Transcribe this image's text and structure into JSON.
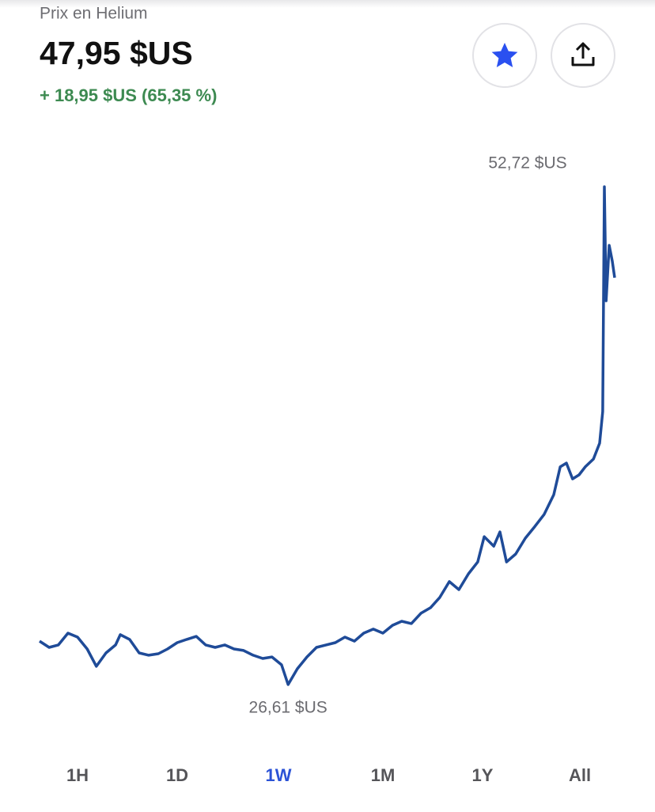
{
  "header": {
    "title": "Prix en Helium",
    "price": "47,95 $US",
    "change": "+ 18,95 $US (65,35 %)",
    "change_color": "#3d8a51"
  },
  "chart_data": {
    "type": "line",
    "x": [
      0,
      2.8,
      5.5,
      8.3,
      11.1,
      13.9,
      16.6,
      19.4,
      22.2,
      23.6,
      26.3,
      29.1,
      31.9,
      34.7,
      37.4,
      40.2,
      43.0,
      45.8,
      48.5,
      51.3,
      54.1,
      56.8,
      59.6,
      62.4,
      65.2,
      67.9,
      70.7,
      72.6,
      75.3,
      78.1,
      80.9,
      83.7,
      86.4,
      89.2,
      92.0,
      94.7,
      97.5,
      100.3,
      103.1,
      105.8,
      108.6,
      111.4,
      114.2,
      116.9,
      119.7,
      122.5,
      125.3,
      128.0,
      129.9,
      132.7,
      134.5,
      136.4,
      139.1,
      141.9,
      144.7,
      147.4,
      150.2,
      152.1,
      153.9,
      155.7,
      157.6,
      159.4,
      161.8,
      163.6,
      164.5,
      165.0,
      165.5,
      166.4,
      167.3,
      168
    ],
    "series": [
      {
        "color": "#1f4b98",
        "values": [
          28.89,
          28.56,
          28.69,
          29.31,
          29.1,
          28.48,
          27.57,
          28.27,
          28.69,
          29.23,
          28.98,
          28.27,
          28.15,
          28.23,
          28.48,
          28.81,
          28.98,
          29.14,
          28.69,
          28.56,
          28.69,
          28.48,
          28.4,
          28.15,
          27.98,
          28.06,
          27.65,
          26.61,
          27.44,
          28.06,
          28.56,
          28.69,
          28.81,
          29.1,
          28.89,
          29.31,
          29.52,
          29.31,
          29.72,
          29.93,
          29.81,
          30.35,
          30.64,
          31.18,
          32.01,
          31.59,
          32.42,
          33.04,
          34.37,
          33.87,
          34.62,
          33.04,
          33.46,
          34.29,
          34.91,
          35.54,
          36.57,
          38.03,
          38.23,
          37.4,
          37.61,
          38.03,
          38.44,
          39.27,
          40.93,
          52.72,
          46.74,
          49.65,
          48.82,
          47.95
        ]
      }
    ],
    "xlim": [
      0,
      168
    ],
    "ylim": [
      26,
      54
    ],
    "annotations": [
      {
        "value": 52.72,
        "label": "52,72 $US"
      },
      {
        "value": 26.61,
        "label": "26,61 $US"
      }
    ],
    "annotation_color": "#6b6b70"
  },
  "tabs": {
    "items": [
      "1H",
      "1D",
      "1W",
      "1M",
      "1Y",
      "All"
    ],
    "selected": 2,
    "color": "#555559",
    "selected_color": "#2c53d6"
  }
}
